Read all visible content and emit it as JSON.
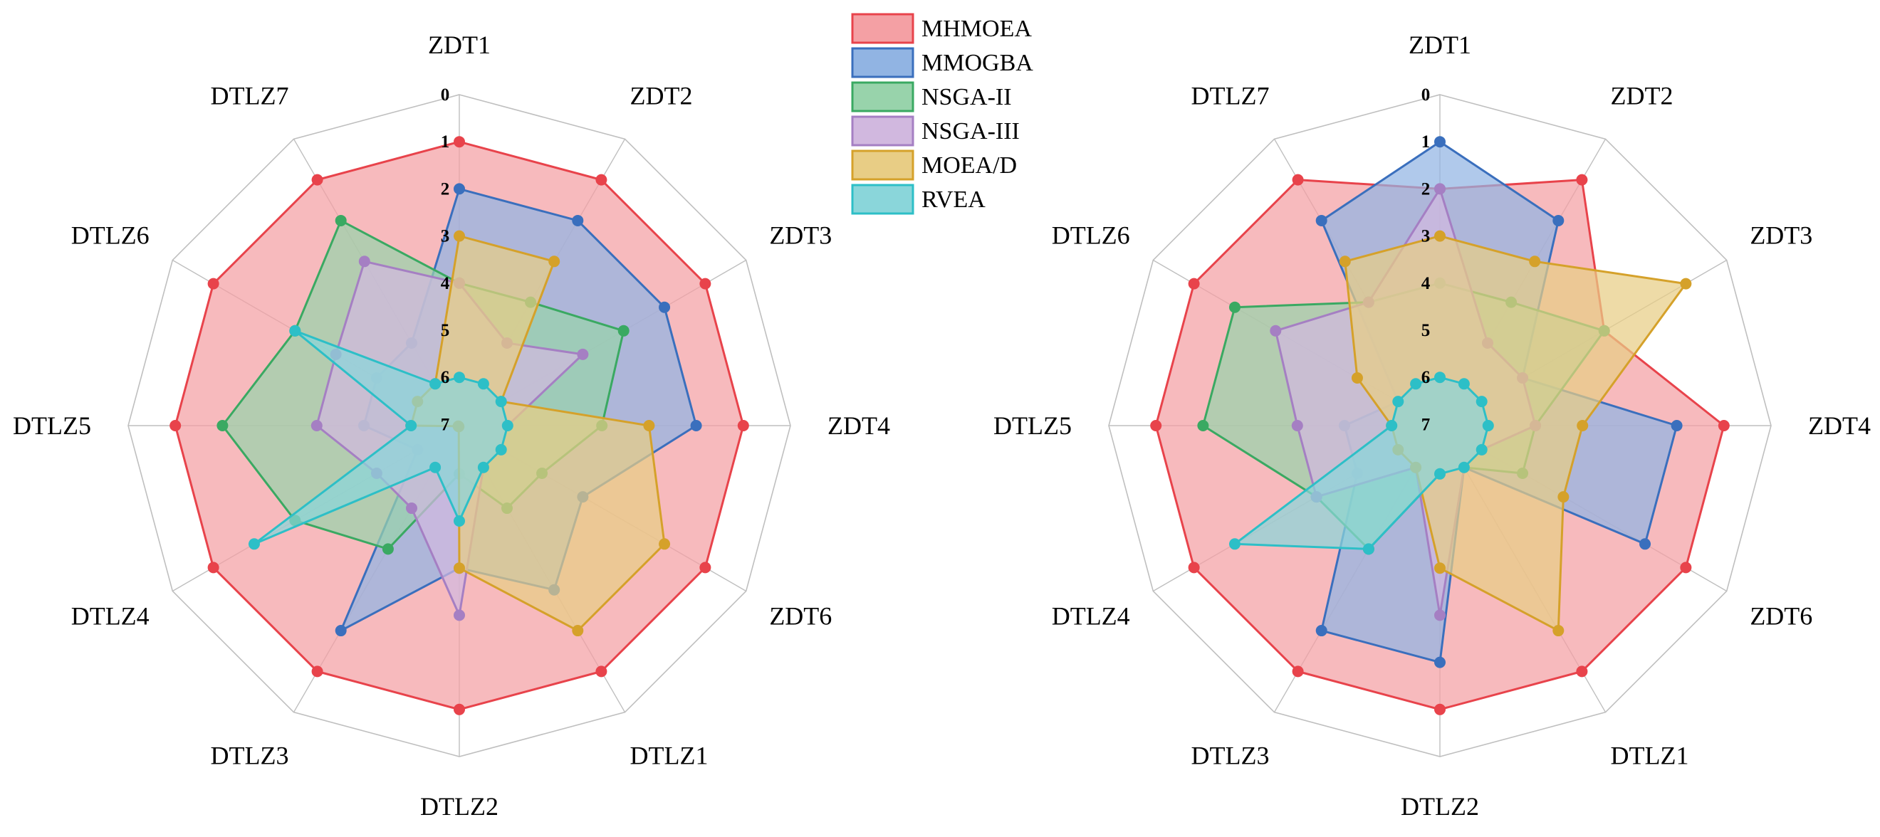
{
  "legend": {
    "entries": [
      {
        "name": "MHMOEA",
        "color": "#e8434b",
        "fill": "#f4a0a4"
      },
      {
        "name": "MMOGBA",
        "color": "#3a6fbd",
        "fill": "#91b4e3"
      },
      {
        "name": "NSGA-II",
        "color": "#3aa962",
        "fill": "#98d3ab"
      },
      {
        "name": "NSGA-III",
        "color": "#a57fc3",
        "fill": "#d1b8df"
      },
      {
        "name": "MOEA/D",
        "color": "#d5a12a",
        "fill": "#e8cd85"
      },
      {
        "name": "RVEA",
        "color": "#2dbfc7",
        "fill": "#8ad6da"
      }
    ]
  },
  "chart_data": [
    {
      "type": "radar",
      "categories": [
        "ZDT1",
        "ZDT2",
        "ZDT3",
        "ZDT4",
        "ZDT6",
        "DTLZ1",
        "DTLZ2",
        "DTLZ3",
        "DTLZ4",
        "DTLZ5",
        "DTLZ6",
        "DTLZ7"
      ],
      "rank_ticks": [
        "0",
        "1",
        "2",
        "3",
        "4",
        "5",
        "6",
        "7"
      ],
      "rlim": [
        0,
        7
      ],
      "axis_direction": "reversed (rank 0 at outer edge, rank 7 at center)",
      "series": [
        {
          "name": "MHMOEA",
          "values": [
            1,
            1,
            1,
            1,
            1,
            1,
            1,
            1,
            1,
            1,
            1,
            1
          ]
        },
        {
          "name": "MMOGBA",
          "values": [
            2,
            2,
            2,
            2,
            4,
            3,
            4,
            2,
            6,
            5,
            5,
            5
          ]
        },
        {
          "name": "NSGA-II",
          "values": [
            4,
            4,
            3,
            4,
            5,
            5,
            6,
            4,
            3,
            2,
            3,
            2
          ]
        },
        {
          "name": "NSGA-III",
          "values": [
            4,
            5,
            4,
            6,
            6,
            6,
            3,
            5,
            5,
            4,
            4,
            3
          ]
        },
        {
          "name": "MOEA/D",
          "values": [
            3,
            3,
            6,
            3,
            2,
            2,
            4,
            7,
            7,
            6,
            6,
            6
          ]
        },
        {
          "name": "RVEA",
          "values": [
            6,
            6,
            6,
            6,
            6,
            6,
            5,
            6,
            2,
            6,
            3,
            6
          ]
        }
      ]
    },
    {
      "type": "radar",
      "categories": [
        "ZDT1",
        "ZDT2",
        "ZDT3",
        "ZDT4",
        "ZDT6",
        "DTLZ1",
        "DTLZ2",
        "DTLZ3",
        "DTLZ4",
        "DTLZ5",
        "DTLZ6",
        "DTLZ7"
      ],
      "rank_ticks": [
        "0",
        "1",
        "2",
        "3",
        "4",
        "5",
        "6",
        "7"
      ],
      "rlim": [
        0,
        7
      ],
      "axis_direction": "reversed (rank 0 at outer edge, rank 7 at center)",
      "series": [
        {
          "name": "MHMOEA",
          "values": [
            2,
            1,
            3,
            1,
            1,
            1,
            1,
            1,
            1,
            1,
            1,
            1
          ]
        },
        {
          "name": "MMOGBA",
          "values": [
            1,
            2,
            5,
            2,
            2,
            6,
            2,
            2,
            5,
            5,
            6,
            2
          ]
        },
        {
          "name": "NSGA-II",
          "values": [
            4,
            4,
            3,
            5,
            5,
            6,
            6,
            4,
            4,
            2,
            2,
            4
          ]
        },
        {
          "name": "NSGA-III",
          "values": [
            2,
            5,
            5,
            5,
            6,
            6,
            3,
            6,
            4,
            4,
            3,
            4
          ]
        },
        {
          "name": "MOEA/D",
          "values": [
            3,
            3,
            1,
            4,
            4,
            2,
            4,
            6,
            6,
            6,
            5,
            3
          ]
        },
        {
          "name": "RVEA",
          "values": [
            6,
            6,
            6,
            6,
            6,
            6,
            6,
            4,
            2,
            6,
            6,
            6
          ]
        }
      ]
    }
  ]
}
